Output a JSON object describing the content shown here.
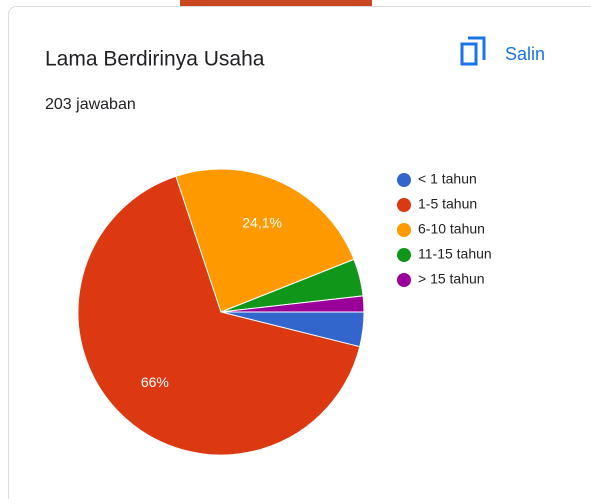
{
  "chart_data": {
    "type": "pie",
    "title": "Lama Berdirinya Usaha",
    "subtitle": "203 jawaban",
    "categories": [
      "< 1 tahun",
      "1-5 tahun",
      "6-10 tahun",
      "11-15 tahun",
      "> 15 tahun"
    ],
    "values": [
      3.9,
      66,
      24.1,
      4.2,
      1.8
    ],
    "value_labels": [
      null,
      "66%",
      "24,1%",
      null,
      null
    ],
    "colors": [
      "#3366cc",
      "#dc3912",
      "#ff9900",
      "#109618",
      "#990099"
    ],
    "legend": "right"
  },
  "ui": {
    "copy_button": "Salin"
  }
}
